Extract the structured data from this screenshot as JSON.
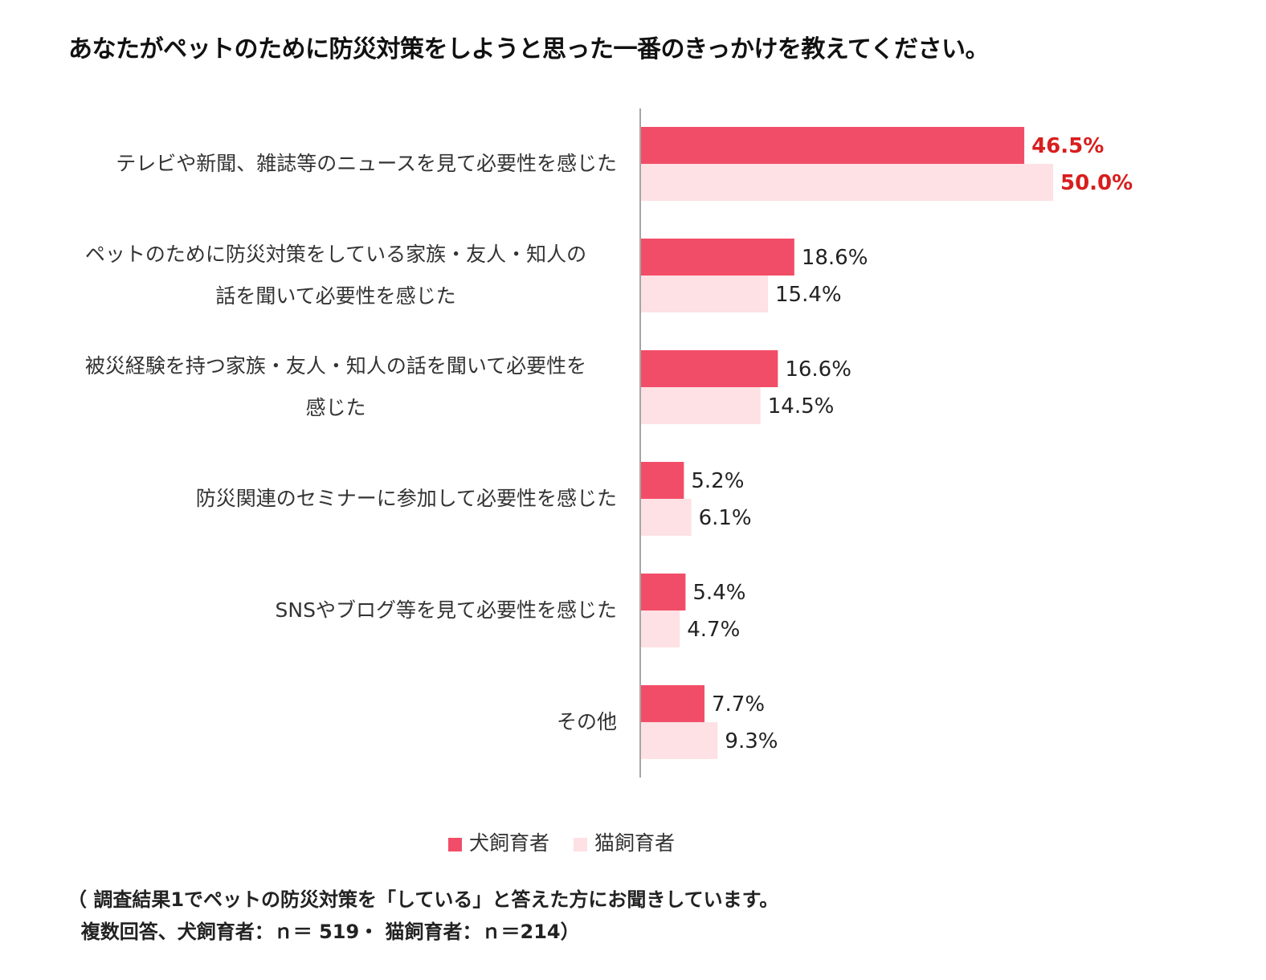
{
  "title": "あなたがペットのために防災対策をしようと思った一番のきっかけを教えてください。",
  "chart_data": {
    "type": "bar",
    "orientation": "horizontal",
    "categories": [
      [
        "テレビや新聞、雑誌等のニュースを見て必要性を感じた"
      ],
      [
        "ペットのために防災対策をしている家族・友人・知人の",
        "話を聞いて必要性を感じた"
      ],
      [
        "被災経験を持つ家族・友人・知人の話を聞いて必要性を",
        "感じた"
      ],
      [
        "防災関連のセミナーに参加して必要性を感じた"
      ],
      [
        "SNSやブログ等を見て必要性を感じた"
      ],
      [
        "その他"
      ]
    ],
    "series": [
      {
        "name": "犬飼育者",
        "color": "#f24d68",
        "values": [
          46.5,
          18.6,
          16.6,
          5.2,
          5.4,
          7.7
        ],
        "labels": [
          "46.5%",
          "18.6%",
          "16.6%",
          "5.2%",
          "5.4%",
          "7.7%"
        ]
      },
      {
        "name": "猫飼育者",
        "color": "#fde1e4",
        "values": [
          50.0,
          15.4,
          14.5,
          6.1,
          4.7,
          9.3
        ],
        "labels": [
          "50.0%",
          "15.4%",
          "14.5%",
          "6.1%",
          "4.7%",
          "9.3%"
        ]
      }
    ],
    "highlight_color": "#d81e1e",
    "highlight_category_index": 0,
    "xlim": [
      0,
      50
    ],
    "grid": false
  },
  "legend": {
    "items": [
      "犬飼育者",
      "猫飼育者"
    ]
  },
  "note": {
    "line1": "（ 調査結果1でペットの防災対策を「している」と答えた方にお聞きしています。",
    "line2": "  複数回答、犬飼育者：ｎ＝ 519・ 猫飼育者：ｎ＝214）"
  }
}
